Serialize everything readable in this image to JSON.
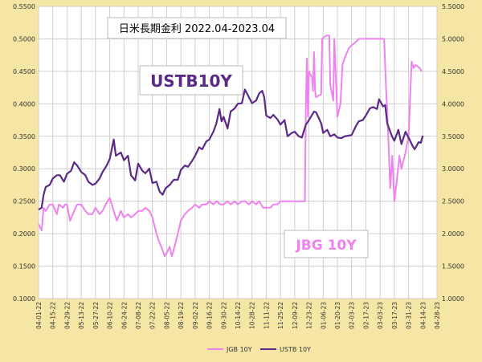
{
  "chart_data": {
    "type": "line",
    "title": "日米長期金利 2022.04-2023.04",
    "annotations": {
      "ustb": "USTB10Y",
      "jgb": "JBG 10Y"
    },
    "left_axis": {
      "ylim": [
        0.1,
        0.55
      ],
      "ticks": [
        "0.1000",
        "0.1500",
        "0.2000",
        "0.2500",
        "0.3000",
        "0.3500",
        "0.4000",
        "0.4500",
        "0.5000",
        "0.5500"
      ]
    },
    "right_axis": {
      "ylim": [
        1.0,
        5.5
      ],
      "ticks": [
        "1.0000",
        "1.5000",
        "2.0000",
        "2.5000",
        "3.0000",
        "3.5000",
        "4.0000",
        "4.5000",
        "5.0000",
        "5.5000"
      ]
    },
    "x_ticks": [
      "04-01-22",
      "04-15-22",
      "04-29-22",
      "05-13-22",
      "05-27-22",
      "06-10-22",
      "06-24-22",
      "07-08-22",
      "07-22-22",
      "08-05-22",
      "08-19-22",
      "09-02-22",
      "09-16-22",
      "09-30-22",
      "10-14-22",
      "10-28-22",
      "11-11-22",
      "11-25-22",
      "12-09-22",
      "12-23-22",
      "01-06-23",
      "01-20-23",
      "02-03-23",
      "02-17-23",
      "03-03-23",
      "03-17-23",
      "03-31-23",
      "04-14-23",
      "04-28-23"
    ],
    "grid": true,
    "legend_placement": "bottom",
    "series": [
      {
        "name": "JGB 10Y",
        "axis": "left",
        "color": "#ee82ee",
        "points": [
          [
            "04-01-22",
            0.215
          ],
          [
            "04-04-22",
            0.205
          ],
          [
            "04-06-22",
            0.24
          ],
          [
            "04-08-22",
            0.235
          ],
          [
            "04-12-22",
            0.245
          ],
          [
            "04-15-22",
            0.245
          ],
          [
            "04-19-22",
            0.23
          ],
          [
            "04-21-22",
            0.245
          ],
          [
            "04-25-22",
            0.24
          ],
          [
            "04-27-22",
            0.245
          ],
          [
            "04-29-22",
            0.245
          ],
          [
            "05-02-22",
            0.22
          ],
          [
            "05-06-22",
            0.235
          ],
          [
            "05-09-22",
            0.245
          ],
          [
            "05-13-22",
            0.245
          ],
          [
            "05-17-22",
            0.235
          ],
          [
            "05-20-22",
            0.23
          ],
          [
            "05-24-22",
            0.23
          ],
          [
            "05-27-22",
            0.24
          ],
          [
            "05-31-22",
            0.23
          ],
          [
            "06-03-22",
            0.235
          ],
          [
            "06-06-22",
            0.245
          ],
          [
            "06-10-22",
            0.255
          ],
          [
            "06-14-22",
            0.235
          ],
          [
            "06-17-22",
            0.22
          ],
          [
            "06-21-22",
            0.235
          ],
          [
            "06-24-22",
            0.225
          ],
          [
            "06-28-22",
            0.23
          ],
          [
            "07-01-22",
            0.225
          ],
          [
            "07-05-22",
            0.23
          ],
          [
            "07-08-22",
            0.235
          ],
          [
            "07-12-22",
            0.235
          ],
          [
            "07-15-22",
            0.24
          ],
          [
            "07-19-22",
            0.235
          ],
          [
            "07-22-22",
            0.225
          ],
          [
            "07-26-22",
            0.2
          ],
          [
            "07-28-22",
            0.19
          ],
          [
            "08-01-22",
            0.175
          ],
          [
            "08-03-22",
            0.165
          ],
          [
            "08-05-22",
            0.17
          ],
          [
            "08-08-22",
            0.18
          ],
          [
            "08-10-22",
            0.165
          ],
          [
            "08-12-22",
            0.175
          ],
          [
            "08-16-22",
            0.2
          ],
          [
            "08-19-22",
            0.22
          ],
          [
            "08-23-22",
            0.23
          ],
          [
            "08-26-22",
            0.235
          ],
          [
            "08-30-22",
            0.24
          ],
          [
            "09-02-22",
            0.245
          ],
          [
            "09-06-22",
            0.24
          ],
          [
            "09-09-22",
            0.245
          ],
          [
            "09-13-22",
            0.245
          ],
          [
            "09-16-22",
            0.25
          ],
          [
            "09-20-22",
            0.245
          ],
          [
            "09-23-22",
            0.25
          ],
          [
            "09-27-22",
            0.245
          ],
          [
            "09-30-22",
            0.245
          ],
          [
            "10-04-22",
            0.25
          ],
          [
            "10-07-22",
            0.245
          ],
          [
            "10-11-22",
            0.25
          ],
          [
            "10-14-22",
            0.245
          ],
          [
            "10-18-22",
            0.25
          ],
          [
            "10-21-22",
            0.25
          ],
          [
            "10-25-22",
            0.245
          ],
          [
            "10-28-22",
            0.25
          ],
          [
            "11-01-22",
            0.245
          ],
          [
            "11-04-22",
            0.25
          ],
          [
            "11-08-22",
            0.24
          ],
          [
            "11-11-22",
            0.24
          ],
          [
            "11-15-22",
            0.24
          ],
          [
            "11-18-22",
            0.245
          ],
          [
            "11-22-22",
            0.245
          ],
          [
            "11-25-22",
            0.25
          ],
          [
            "11-29-22",
            0.25
          ],
          [
            "12-02-22",
            0.25
          ],
          [
            "12-06-22",
            0.25
          ],
          [
            "12-09-22",
            0.25
          ],
          [
            "12-13-22",
            0.25
          ],
          [
            "12-16-22",
            0.25
          ],
          [
            "12-19-22",
            0.25
          ],
          [
            "12-20-22",
            0.4
          ],
          [
            "12-21-22",
            0.47
          ],
          [
            "12-22-22",
            0.38
          ],
          [
            "12-23-22",
            0.45
          ],
          [
            "12-26-22",
            0.44
          ],
          [
            "12-27-22",
            0.42
          ],
          [
            "12-28-22",
            0.48
          ],
          [
            "12-29-22",
            0.42
          ],
          [
            "12-30-22",
            0.41
          ],
          [
            "01-04-23",
            0.415
          ],
          [
            "01-05-23",
            0.5
          ],
          [
            "01-09-23",
            0.505
          ],
          [
            "01-12-23",
            0.505
          ],
          [
            "01-13-23",
            0.43
          ],
          [
            "01-16-23",
            0.405
          ],
          [
            "01-17-23",
            0.5
          ],
          [
            "01-20-23",
            0.38
          ],
          [
            "01-23-23",
            0.4
          ],
          [
            "01-25-23",
            0.46
          ],
          [
            "01-27-23",
            0.47
          ],
          [
            "01-31-23",
            0.485
          ],
          [
            "02-03-23",
            0.49
          ],
          [
            "02-07-23",
            0.495
          ],
          [
            "02-10-23",
            0.5
          ],
          [
            "02-14-23",
            0.5
          ],
          [
            "02-17-23",
            0.5
          ],
          [
            "02-21-23",
            0.5
          ],
          [
            "02-24-23",
            0.5
          ],
          [
            "02-28-23",
            0.5
          ],
          [
            "03-03-23",
            0.5
          ],
          [
            "03-07-23",
            0.5
          ],
          [
            "03-09-23",
            0.42
          ],
          [
            "03-10-23",
            0.39
          ],
          [
            "03-13-23",
            0.27
          ],
          [
            "03-15-23",
            0.32
          ],
          [
            "03-17-23",
            0.25
          ],
          [
            "03-20-23",
            0.29
          ],
          [
            "03-22-23",
            0.32
          ],
          [
            "03-24-23",
            0.3
          ],
          [
            "03-28-23",
            0.325
          ],
          [
            "03-31-23",
            0.35
          ],
          [
            "04-03-23",
            0.465
          ],
          [
            "04-05-23",
            0.455
          ],
          [
            "04-07-23",
            0.46
          ],
          [
            "04-11-23",
            0.455
          ],
          [
            "04-13-23",
            0.45
          ]
        ]
      },
      {
        "name": "USTB 10Y",
        "axis": "right",
        "color": "#5b2a86",
        "points": [
          [
            "04-01-22",
            2.37
          ],
          [
            "04-04-22",
            2.4
          ],
          [
            "04-06-22",
            2.6
          ],
          [
            "04-08-22",
            2.72
          ],
          [
            "04-12-22",
            2.75
          ],
          [
            "04-15-22",
            2.85
          ],
          [
            "04-19-22",
            2.9
          ],
          [
            "04-22-22",
            2.9
          ],
          [
            "04-26-22",
            2.8
          ],
          [
            "04-29-22",
            2.92
          ],
          [
            "05-03-22",
            2.97
          ],
          [
            "05-06-22",
            3.1
          ],
          [
            "05-09-22",
            3.05
          ],
          [
            "05-13-22",
            2.95
          ],
          [
            "05-17-22",
            2.9
          ],
          [
            "05-20-22",
            2.8
          ],
          [
            "05-24-22",
            2.75
          ],
          [
            "05-27-22",
            2.77
          ],
          [
            "05-31-22",
            2.85
          ],
          [
            "06-03-22",
            2.95
          ],
          [
            "06-07-22",
            3.05
          ],
          [
            "06-10-22",
            3.15
          ],
          [
            "06-14-22",
            3.45
          ],
          [
            "06-16-22",
            3.2
          ],
          [
            "06-21-22",
            3.25
          ],
          [
            "06-24-22",
            3.13
          ],
          [
            "06-28-22",
            3.2
          ],
          [
            "07-01-22",
            2.9
          ],
          [
            "07-05-22",
            2.82
          ],
          [
            "07-08-22",
            3.08
          ],
          [
            "07-12-22",
            2.97
          ],
          [
            "07-15-22",
            2.93
          ],
          [
            "07-19-22",
            3.0
          ],
          [
            "07-22-22",
            2.78
          ],
          [
            "07-26-22",
            2.8
          ],
          [
            "07-29-22",
            2.65
          ],
          [
            "08-01-22",
            2.6
          ],
          [
            "08-04-22",
            2.7
          ],
          [
            "08-08-22",
            2.75
          ],
          [
            "08-12-22",
            2.83
          ],
          [
            "08-16-22",
            2.83
          ],
          [
            "08-19-22",
            2.98
          ],
          [
            "08-23-22",
            3.05
          ],
          [
            "08-26-22",
            3.03
          ],
          [
            "08-30-22",
            3.12
          ],
          [
            "09-02-22",
            3.2
          ],
          [
            "09-06-22",
            3.33
          ],
          [
            "09-09-22",
            3.3
          ],
          [
            "09-13-22",
            3.42
          ],
          [
            "09-16-22",
            3.45
          ],
          [
            "09-20-22",
            3.57
          ],
          [
            "09-23-22",
            3.7
          ],
          [
            "09-26-22",
            3.92
          ],
          [
            "09-28-22",
            3.73
          ],
          [
            "09-30-22",
            3.8
          ],
          [
            "10-04-22",
            3.62
          ],
          [
            "10-07-22",
            3.88
          ],
          [
            "10-11-22",
            3.93
          ],
          [
            "10-14-22",
            4.0
          ],
          [
            "10-18-22",
            4.01
          ],
          [
            "10-21-22",
            4.22
          ],
          [
            "10-25-22",
            4.1
          ],
          [
            "10-28-22",
            4.01
          ],
          [
            "11-01-22",
            4.05
          ],
          [
            "11-04-22",
            4.16
          ],
          [
            "11-07-22",
            4.2
          ],
          [
            "11-09-22",
            4.1
          ],
          [
            "11-11-22",
            3.82
          ],
          [
            "11-15-22",
            3.78
          ],
          [
            "11-18-22",
            3.83
          ],
          [
            "11-22-22",
            3.76
          ],
          [
            "11-25-22",
            3.68
          ],
          [
            "11-29-22",
            3.75
          ],
          [
            "12-02-22",
            3.5
          ],
          [
            "12-06-22",
            3.55
          ],
          [
            "12-09-22",
            3.57
          ],
          [
            "12-13-22",
            3.5
          ],
          [
            "12-16-22",
            3.48
          ],
          [
            "12-20-22",
            3.68
          ],
          [
            "12-23-22",
            3.75
          ],
          [
            "12-28-22",
            3.88
          ],
          [
            "12-30-22",
            3.87
          ],
          [
            "01-04-23",
            3.7
          ],
          [
            "01-06-23",
            3.55
          ],
          [
            "01-10-23",
            3.6
          ],
          [
            "01-13-23",
            3.5
          ],
          [
            "01-17-23",
            3.53
          ],
          [
            "01-20-23",
            3.48
          ],
          [
            "01-24-23",
            3.47
          ],
          [
            "01-27-23",
            3.5
          ],
          [
            "01-31-23",
            3.51
          ],
          [
            "02-03-23",
            3.52
          ],
          [
            "02-07-23",
            3.65
          ],
          [
            "02-10-23",
            3.73
          ],
          [
            "02-14-23",
            3.75
          ],
          [
            "02-17-23",
            3.82
          ],
          [
            "02-21-23",
            3.93
          ],
          [
            "02-24-23",
            3.95
          ],
          [
            "02-28-23",
            3.92
          ],
          [
            "03-02-23",
            4.07
          ],
          [
            "03-06-23",
            3.96
          ],
          [
            "03-08-23",
            3.98
          ],
          [
            "03-10-23",
            3.7
          ],
          [
            "03-13-23",
            3.57
          ],
          [
            "03-15-23",
            3.49
          ],
          [
            "03-17-23",
            3.43
          ],
          [
            "03-21-23",
            3.6
          ],
          [
            "03-24-23",
            3.38
          ],
          [
            "03-28-23",
            3.57
          ],
          [
            "03-31-23",
            3.48
          ],
          [
            "04-04-23",
            3.35
          ],
          [
            "04-06-23",
            3.3
          ],
          [
            "04-10-23",
            3.41
          ],
          [
            "04-12-23",
            3.4
          ],
          [
            "04-14-23",
            3.51
          ]
        ]
      }
    ]
  }
}
